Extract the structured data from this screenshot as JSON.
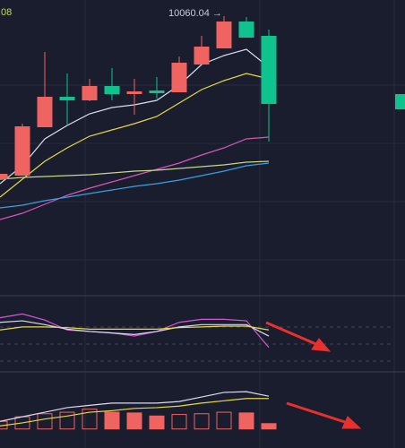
{
  "chart_data": [
    {
      "type": "candlestick",
      "categories": [
        null,
        null,
        null,
        null,
        null,
        null,
        null,
        null,
        null,
        null,
        null,
        null,
        null
      ],
      "open": [
        9150,
        9170,
        9440,
        9610,
        9590,
        9670,
        9625,
        9645,
        9635,
        9790,
        9880,
        10030,
        9950
      ],
      "high": [
        9180,
        9460,
        9860,
        9740,
        9710,
        9770,
        9710,
        9720,
        9835,
        9950,
        10060.04,
        10055,
        9985
      ],
      "low": [
        9150,
        9170,
        9440,
        9450,
        9585,
        9590,
        9510,
        9600,
        9635,
        9790,
        9880,
        9940,
        9360
      ],
      "close": [
        9180,
        9445,
        9610,
        9590,
        9670,
        9625,
        9640,
        9630,
        9800,
        9890,
        10030,
        9940,
        9570
      ],
      "up_color": "#ef6461",
      "down_color": "#10c38e",
      "ylim": [
        8500,
        10150
      ],
      "lines": [
        {
          "color": "#dcdcf0",
          "values": [
            9125,
            9225,
            9375,
            9450,
            9515,
            9550,
            9565,
            9590,
            9675,
            9790,
            9840,
            9875,
            9775
          ]
        },
        {
          "color": "#e5d84a",
          "values": [
            9050,
            9150,
            9250,
            9325,
            9390,
            9425,
            9460,
            9500,
            9575,
            9650,
            9700,
            9740,
            9710
          ]
        },
        {
          "color": "#d457b8",
          "values": [
            8925,
            8960,
            9010,
            9060,
            9100,
            9135,
            9170,
            9205,
            9240,
            9285,
            9325,
            9375,
            9385
          ]
        },
        {
          "color": "#c6d68a",
          "values": [
            9150,
            9160,
            9165,
            9170,
            9175,
            9185,
            9195,
            9200,
            9210,
            9220,
            9230,
            9245,
            9250
          ]
        },
        {
          "color": "#3aa0e0",
          "values": [
            8990,
            9005,
            9030,
            9050,
            9070,
            9090,
            9110,
            9125,
            9145,
            9170,
            9195,
            9225,
            9240
          ]
        }
      ],
      "annotation": "10060.04 →",
      "corner_text": ".08"
    },
    {
      "type": "line",
      "ylim": [
        0,
        100
      ],
      "series": [
        {
          "color": "#d457d8",
          "values": [
            71,
            76,
            68,
            55,
            53,
            51,
            47,
            53,
            65,
            69,
            69,
            67,
            32
          ]
        },
        {
          "color": "#dcdcf0",
          "values": [
            65,
            67,
            62,
            56,
            53,
            51,
            49,
            53,
            59,
            62,
            62,
            62,
            47
          ]
        },
        {
          "color": "#e5d84a",
          "values": [
            55,
            59,
            59,
            58,
            56,
            56,
            56,
            56,
            58,
            59,
            60,
            60,
            55
          ]
        }
      ]
    },
    {
      "type": "bar",
      "ylim": [
        -25,
        75
      ],
      "values": [
        10,
        16,
        20,
        22,
        26,
        22,
        21,
        17,
        19,
        20,
        22,
        21,
        7
      ],
      "hollow": [
        true,
        true,
        true,
        true,
        true,
        false,
        false,
        false,
        true,
        true,
        true,
        false,
        false
      ],
      "color": "#ef6461",
      "series": [
        {
          "color": "#dcdcf0",
          "values": [
            10,
            16,
            22,
            28,
            31,
            34,
            34,
            34,
            36,
            42,
            48,
            49,
            43
          ]
        },
        {
          "color": "#e5d84a",
          "values": [
            4,
            8,
            13,
            17,
            22,
            24,
            27,
            28,
            30,
            34,
            37,
            40,
            40
          ]
        }
      ]
    }
  ]
}
